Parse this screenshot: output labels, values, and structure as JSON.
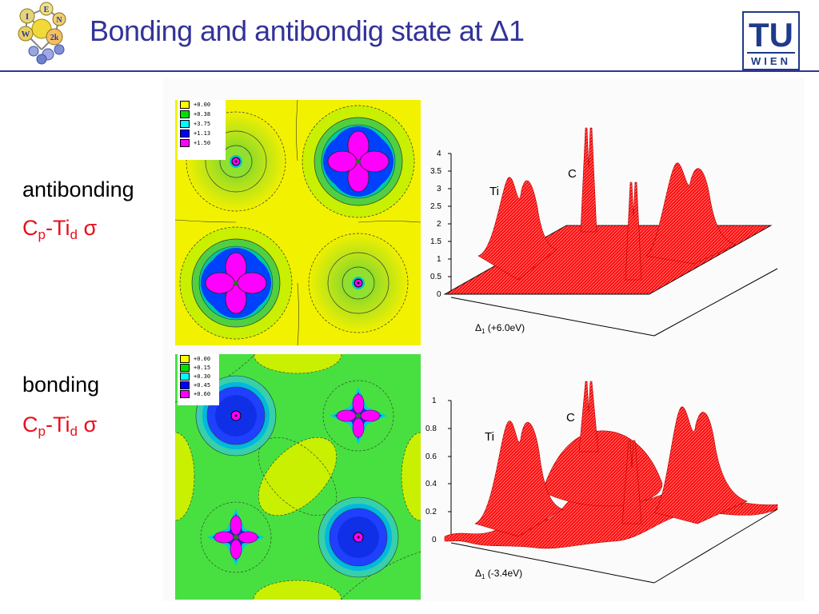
{
  "slide": {
    "title": "Bonding and antibondig state at Δ1"
  },
  "logos": {
    "left": {
      "letters": [
        "I",
        "E",
        "W",
        "N",
        "2k"
      ]
    },
    "right": {
      "top_text": "TU",
      "bottom_text": "WIEN"
    }
  },
  "labels": {
    "antibonding_word": "antibonding",
    "antibonding_formula": {
      "c": "C",
      "c_sub": "p",
      "dash_ti": "-Ti",
      "ti_sub": "d",
      "sigma": "σ"
    },
    "bonding_word": "bonding",
    "bonding_formula": {
      "c": "C",
      "c_sub": "p",
      "dash_ti": "-Ti",
      "ti_sub": "d",
      "sigma": "σ"
    }
  },
  "legend_top": {
    "entries": [
      {
        "label": "+0.00",
        "color": "#ffff00"
      },
      {
        "label": "+0.38",
        "color": "#00e000"
      },
      {
        "label": "+3.75",
        "color": "#00ffff"
      },
      {
        "label": "+1.13",
        "color": "#0000ff"
      },
      {
        "label": "+1.50",
        "color": "#ff00ff"
      }
    ]
  },
  "legend_bottom": {
    "entries": [
      {
        "label": "+0.00",
        "color": "#ffff00"
      },
      {
        "label": "+0.15",
        "color": "#00e000"
      },
      {
        "label": "+0.30",
        "color": "#00ffff"
      },
      {
        "label": "+0.45",
        "color": "#0000ff"
      },
      {
        "label": "+0.60",
        "color": "#ff00ff"
      }
    ]
  },
  "plot_top": {
    "y_ticks": [
      "0",
      "0.5",
      "1",
      "1.5",
      "2",
      "2.5",
      "3",
      "3.5",
      "4"
    ],
    "label_ti": "Ti",
    "label_c": "C",
    "caption_prefix": "Δ",
    "caption_sub": "1",
    "caption_rest": " (+6.0eV)",
    "surface_color": "#ff0000"
  },
  "plot_bottom": {
    "y_ticks": [
      "0",
      "0.2",
      "0.4",
      "0.6",
      "0.8",
      "1"
    ],
    "label_ti": "Ti",
    "label_c": "C",
    "caption_prefix": "Δ",
    "caption_sub": "1",
    "caption_rest": " (-3.4eV)",
    "surface_color": "#ff0000"
  }
}
